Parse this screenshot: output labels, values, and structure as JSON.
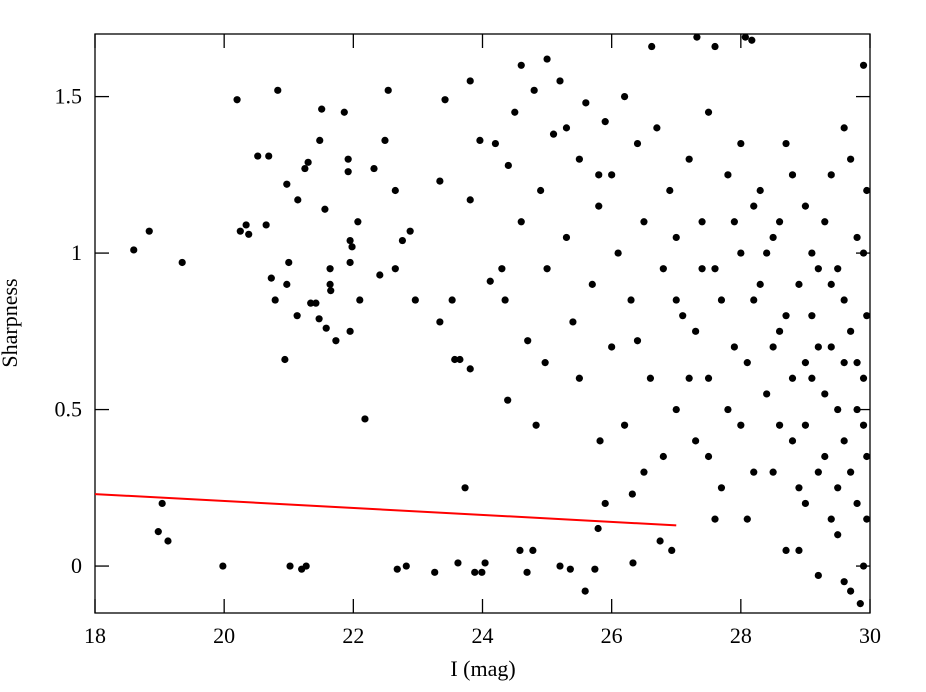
{
  "chart_data": {
    "type": "scatter",
    "xlabel": "I (mag)",
    "ylabel": "Sharpness",
    "xlim": [
      18,
      30
    ],
    "ylim": [
      -0.15,
      1.7
    ],
    "xticks": [
      18,
      20,
      22,
      24,
      26,
      28,
      30
    ],
    "yticks": [
      0,
      0.5,
      1,
      1.5
    ],
    "series": [
      {
        "color": "#000000",
        "style": "points",
        "x": [
          18.6,
          18.84,
          19.35,
          19.04,
          18.98,
          19.13,
          19.98,
          20.2,
          20.25,
          20.34,
          20.38,
          20.52,
          20.69,
          20.65,
          20.73,
          20.79,
          20.83,
          20.97,
          21.0,
          20.97,
          20.94,
          21.02,
          21.14,
          21.13,
          21.2,
          21.27,
          21.25,
          21.3,
          21.34,
          21.42,
          21.47,
          21.48,
          21.51,
          21.56,
          21.64,
          21.64,
          21.65,
          21.58,
          21.73,
          21.86,
          21.92,
          21.92,
          21.95,
          21.98,
          21.95,
          21.95,
          22.07,
          22.1,
          22.18,
          22.32,
          22.41,
          22.49,
          22.54,
          22.65,
          22.68,
          22.82,
          22.65,
          22.76,
          22.88,
          22.96,
          23.26,
          23.34,
          23.34,
          23.42,
          23.53,
          23.57,
          23.65,
          23.62,
          23.73,
          23.81,
          23.81,
          23.88,
          23.99,
          24.04,
          23.81,
          23.96,
          24.12,
          24.35,
          24.39,
          24.58,
          24.78,
          24.69,
          24.83,
          24.97,
          25.2,
          25.36,
          25.59,
          25.74,
          25.79,
          25.82,
          25.9,
          26.33,
          26.32,
          26.75,
          26.93,
          26.62,
          27.32,
          27.6,
          28.07,
          28.17,
          24.2,
          24.4,
          24.5,
          24.6,
          24.8,
          24.9,
          25.0,
          25.1,
          25.2,
          25.3,
          25.4,
          25.5,
          25.6,
          25.7,
          25.8,
          25.9,
          26.0,
          26.0,
          26.1,
          26.2,
          26.3,
          26.4,
          26.5,
          26.6,
          26.7,
          26.8,
          26.9,
          27.0,
          27.0,
          24.3,
          24.7,
          25.0,
          25.5,
          26.2,
          26.5,
          26.8,
          24.6,
          25.3,
          25.8,
          26.4,
          27.1,
          27.2,
          27.3,
          27.4,
          27.5,
          27.6,
          27.7,
          27.8,
          27.9,
          28.0,
          28.0,
          28.1,
          28.2,
          28.3,
          28.4,
          28.5,
          28.5,
          28.6,
          28.7,
          28.7,
          28.8,
          28.9,
          29.0,
          29.0,
          29.1,
          29.2,
          29.2,
          29.3,
          29.4,
          29.4,
          29.5,
          29.5,
          29.6,
          29.6,
          29.7,
          29.7,
          29.8,
          29.8,
          29.9,
          29.9,
          29.95,
          29.95,
          27.3,
          27.5,
          27.8,
          28.1,
          28.3,
          28.6,
          28.8,
          29.1,
          29.3,
          29.5,
          29.7,
          29.9,
          28.2,
          28.9,
          29.4,
          29.8,
          29.6,
          29.85,
          27.6,
          28.4,
          28.7,
          29.0,
          29.2,
          29.4,
          29.6,
          29.8,
          29.9,
          27.9,
          28.5,
          29.1,
          29.3,
          29.7,
          29.9,
          28.0,
          27.4,
          27.2,
          27.0,
          28.6,
          29.0,
          29.5,
          29.2,
          28.8,
          28.2,
          27.7,
          27.5,
          28.9,
          29.6,
          29.95,
          29.95
        ],
        "values": [
          1.01,
          1.07,
          0.97,
          0.2,
          0.11,
          0.08,
          0.0,
          1.49,
          1.07,
          1.09,
          1.06,
          1.31,
          1.31,
          1.09,
          0.92,
          0.85,
          1.52,
          1.22,
          0.97,
          0.9,
          0.66,
          0.0,
          1.17,
          0.8,
          -0.01,
          0.0,
          1.27,
          1.29,
          0.84,
          0.84,
          0.79,
          1.36,
          1.46,
          1.14,
          0.95,
          0.9,
          0.88,
          0.76,
          0.72,
          1.45,
          1.3,
          1.26,
          1.04,
          1.02,
          0.97,
          0.75,
          1.1,
          0.85,
          0.47,
          1.27,
          0.93,
          1.36,
          1.52,
          0.95,
          -0.01,
          0.0,
          1.2,
          1.04,
          1.07,
          0.85,
          -0.02,
          0.78,
          1.23,
          1.49,
          0.85,
          0.66,
          0.66,
          0.01,
          0.25,
          0.63,
          1.55,
          -0.02,
          -0.02,
          0.01,
          1.17,
          1.36,
          0.91,
          0.85,
          0.53,
          0.05,
          0.05,
          -0.02,
          0.45,
          0.65,
          0.0,
          -0.01,
          -0.08,
          -0.01,
          0.12,
          0.4,
          0.2,
          0.01,
          0.23,
          0.08,
          0.05,
          1.66,
          1.69,
          1.66,
          1.69,
          1.68,
          1.35,
          1.28,
          1.45,
          1.1,
          1.52,
          1.2,
          0.95,
          1.38,
          1.55,
          1.05,
          0.78,
          1.3,
          1.48,
          0.9,
          1.15,
          1.42,
          0.7,
          1.25,
          1.0,
          1.5,
          0.85,
          1.35,
          1.1,
          0.6,
          1.4,
          0.95,
          1.2,
          0.5,
          1.05,
          0.95,
          0.72,
          1.62,
          0.6,
          0.45,
          0.3,
          0.35,
          1.6,
          1.4,
          1.25,
          0.72,
          0.8,
          1.3,
          0.4,
          1.1,
          0.6,
          0.95,
          0.25,
          1.25,
          0.7,
          1.0,
          0.45,
          0.15,
          0.85,
          1.2,
          0.55,
          0.3,
          1.05,
          0.75,
          0.05,
          1.35,
          0.4,
          0.9,
          0.2,
          1.15,
          0.6,
          -0.03,
          0.95,
          0.35,
          1.25,
          0.7,
          0.1,
          0.5,
          0.85,
          1.4,
          -0.08,
          0.3,
          0.65,
          1.05,
          0.0,
          0.45,
          0.8,
          1.2,
          0.75,
          1.45,
          0.5,
          0.65,
          0.9,
          1.1,
          0.6,
          0.8,
          0.55,
          0.95,
          0.75,
          0.6,
          0.3,
          0.25,
          0.15,
          0.2,
          -0.05,
          -0.12,
          0.15,
          1.0,
          0.8,
          0.45,
          0.7,
          0.9,
          0.4,
          0.5,
          1.0,
          1.1,
          0.7,
          1.0,
          1.1,
          1.3,
          1.6,
          1.35,
          0.95,
          0.6,
          0.85,
          0.45,
          0.65,
          0.25,
          0.3,
          1.25,
          1.15,
          0.85,
          0.35,
          0.05,
          0.65,
          0.35,
          0.15
        ]
      },
      {
        "color": "#ff0000",
        "style": "line",
        "x": [
          18,
          27
        ],
        "values": [
          0.23,
          0.13
        ]
      }
    ]
  }
}
